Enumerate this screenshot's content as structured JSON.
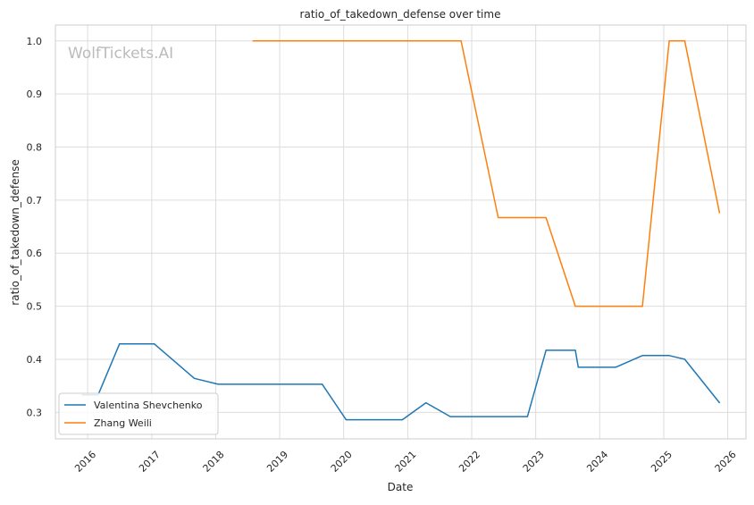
{
  "watermark": "WolfTickets.AI",
  "chart_data": {
    "type": "line",
    "title": "ratio_of_takedown_defense over time",
    "xlabel": "Date",
    "ylabel": "ratio_of_takedown_defense",
    "xlim": [
      "2015-07-01",
      "2026-04-15"
    ],
    "ylim": [
      0.25,
      1.03
    ],
    "x_ticks": [
      "2016",
      "2017",
      "2018",
      "2019",
      "2020",
      "2021",
      "2022",
      "2023",
      "2024",
      "2025",
      "2026"
    ],
    "y_ticks": [
      "0.3",
      "0.4",
      "0.5",
      "0.6",
      "0.7",
      "0.8",
      "0.9",
      "1.0"
    ],
    "grid": true,
    "legend_position": "lower-left",
    "series": [
      {
        "name": "Valentina Shevchenko",
        "color": "#1f77b4",
        "points": [
          {
            "x": "2015-12-01",
            "y": 0.333
          },
          {
            "x": "2016-03-01",
            "y": 0.333
          },
          {
            "x": "2016-07-01",
            "y": 0.429
          },
          {
            "x": "2017-01-15",
            "y": 0.429
          },
          {
            "x": "2017-09-01",
            "y": 0.364
          },
          {
            "x": "2018-01-15",
            "y": 0.353
          },
          {
            "x": "2019-09-01",
            "y": 0.353
          },
          {
            "x": "2020-01-15",
            "y": 0.286
          },
          {
            "x": "2020-12-01",
            "y": 0.286
          },
          {
            "x": "2021-04-15",
            "y": 0.318
          },
          {
            "x": "2021-09-01",
            "y": 0.292
          },
          {
            "x": "2022-11-15",
            "y": 0.292
          },
          {
            "x": "2023-03-01",
            "y": 0.417
          },
          {
            "x": "2023-08-15",
            "y": 0.417
          },
          {
            "x": "2023-09-01",
            "y": 0.385
          },
          {
            "x": "2024-04-01",
            "y": 0.385
          },
          {
            "x": "2024-09-01",
            "y": 0.407
          },
          {
            "x": "2025-02-01",
            "y": 0.407
          },
          {
            "x": "2025-05-01",
            "y": 0.4
          },
          {
            "x": "2025-11-15",
            "y": 0.318
          }
        ]
      },
      {
        "name": "Zhang Weili",
        "color": "#ff7f0e",
        "points": [
          {
            "x": "2018-08-01",
            "y": 1.0
          },
          {
            "x": "2021-11-01",
            "y": 1.0
          },
          {
            "x": "2022-06-01",
            "y": 0.667
          },
          {
            "x": "2023-03-01",
            "y": 0.667
          },
          {
            "x": "2023-08-15",
            "y": 0.5
          },
          {
            "x": "2024-09-01",
            "y": 0.5
          },
          {
            "x": "2025-02-01",
            "y": 1.0
          },
          {
            "x": "2025-05-01",
            "y": 1.0
          },
          {
            "x": "2025-11-15",
            "y": 0.676
          }
        ]
      }
    ]
  }
}
